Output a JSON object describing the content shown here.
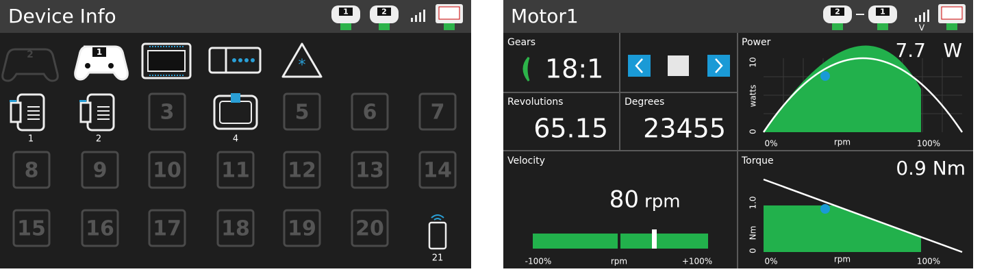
{
  "device_info": {
    "title": "Device Info",
    "status_badges": [
      "1",
      "2"
    ],
    "controller_badges": [
      "2",
      "1"
    ],
    "port_boxes": [
      "3",
      "5",
      "6",
      "7",
      "8",
      "9",
      "10",
      "11",
      "12",
      "13",
      "14",
      "15",
      "16",
      "17",
      "18",
      "19",
      "20"
    ],
    "device_labels": [
      "1",
      "2",
      "4",
      "21"
    ]
  },
  "motor": {
    "title": "Motor1",
    "status_badges": [
      "2",
      "1"
    ],
    "signal_label": "V",
    "gears": {
      "label": "Gears",
      "value": "18:1"
    },
    "revolutions": {
      "label": "Revolutions",
      "value": "65.15"
    },
    "degrees": {
      "label": "Degrees",
      "value": "23455"
    },
    "velocity": {
      "label": "Velocity",
      "value": "80",
      "unit": "rpm",
      "axis_left": "-100%",
      "axis_mid": "rpm",
      "axis_right": "+100%"
    },
    "power": {
      "label": "Power",
      "value": "7.7",
      "unit": "W",
      "y_top": "10",
      "y_bottom": "0",
      "y_label": "watts",
      "x_left": "0%",
      "x_mid": "rpm",
      "x_right": "100%"
    },
    "torque": {
      "label": "Torque",
      "value": "0.9 Nm",
      "y_top": "1.0",
      "y_bottom": "0",
      "y_label": "Nm",
      "x_left": "0%",
      "x_mid": "rpm",
      "x_right": "100%"
    }
  }
}
